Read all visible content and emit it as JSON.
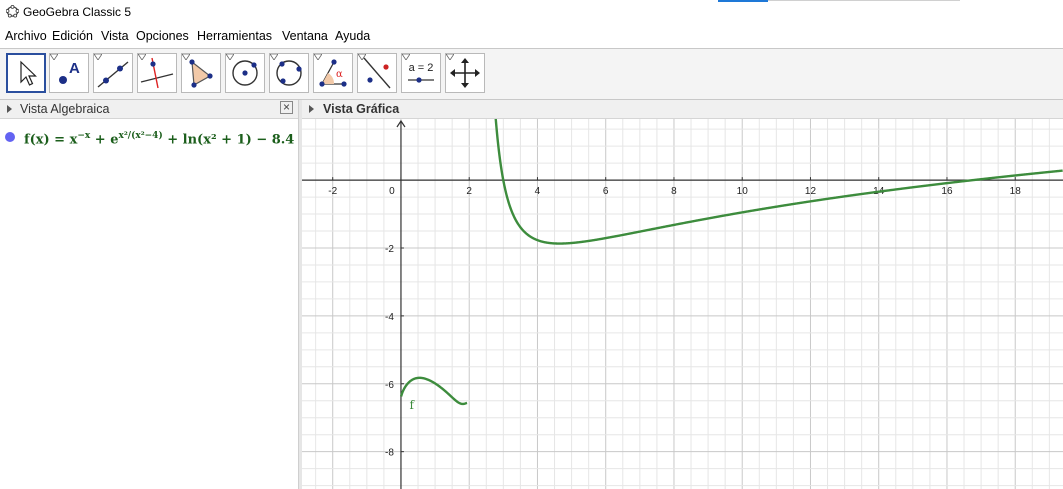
{
  "window": {
    "title": "GeoGebra Classic 5",
    "icon": "geogebra-logo-icon"
  },
  "menu": [
    "Archivo",
    "Edición",
    "Vista",
    "Opciones",
    "Herramientas",
    "Ventana",
    "Ayuda"
  ],
  "toolbar": {
    "tools": [
      {
        "name": "move-tool",
        "icon": "arrow-cursor-icon",
        "active": true
      },
      {
        "name": "point-tool",
        "icon": "point-a-icon"
      },
      {
        "name": "line-tool",
        "icon": "line-through-points-icon"
      },
      {
        "name": "perpendicular-line-tool",
        "icon": "perpendicular-line-icon"
      },
      {
        "name": "polygon-tool",
        "icon": "polygon-icon"
      },
      {
        "name": "circle-tool",
        "icon": "circle-center-point-icon"
      },
      {
        "name": "circle-three-points-tool",
        "icon": "circle-three-points-icon"
      },
      {
        "name": "angle-tool",
        "icon": "angle-icon"
      },
      {
        "name": "reflect-tool",
        "icon": "reflect-about-line-icon"
      },
      {
        "name": "slider-tool",
        "icon": "slider-icon",
        "label": "a = 2"
      },
      {
        "name": "move-graphics-view-tool",
        "icon": "move-graphics-view-icon"
      }
    ]
  },
  "algebra_view": {
    "title": "Vista Algebraica",
    "close_symbol": "×",
    "entries": [
      {
        "name": "f",
        "color": "#6363f2",
        "lhs": "f(x) = x",
        "exp1": "−x",
        "mid": " + e",
        "exp2": "x²/(x²−4)",
        "rhs": " + ln(x² + 1) − 8.4"
      }
    ]
  },
  "graphics_view": {
    "title": "Vista Gráfica",
    "x_range": [
      -2.9,
      19.4
    ],
    "y_range": [
      -9.1,
      1.8
    ],
    "x_ticks": [
      "-2",
      "0",
      "2",
      "4",
      "6",
      "8",
      "10",
      "12",
      "14",
      "16",
      "18"
    ],
    "y_ticks": [
      "-2",
      "-4",
      "-6",
      "-8"
    ],
    "curve_color": "#3d8c3d",
    "curve_label": "f"
  }
}
